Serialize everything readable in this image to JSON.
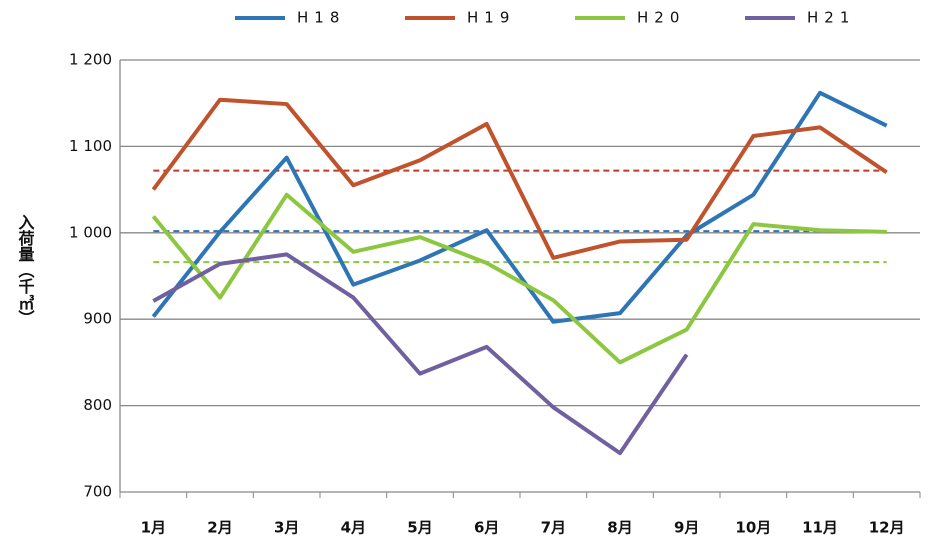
{
  "chart_data": {
    "type": "line",
    "y_label": "入荷量（千㎥）",
    "categories": [
      "1月",
      "2月",
      "3月",
      "4月",
      "5月",
      "6月",
      "7月",
      "8月",
      "9月",
      "10月",
      "11月",
      "12月"
    ],
    "series": [
      {
        "name": "H18",
        "color": "#2e75b6",
        "values": [
          903,
          1001,
          1087,
          940,
          968,
          1003,
          897,
          907,
          997,
          1044,
          1162,
          1124
        ]
      },
      {
        "name": "H19",
        "color": "#c0522c",
        "values": [
          1050,
          1154,
          1149,
          1055,
          1084,
          1126,
          971,
          990,
          992,
          1112,
          1122,
          1070
        ]
      },
      {
        "name": "H20",
        "color": "#8dc63f",
        "values": [
          1019,
          925,
          1044,
          978,
          995,
          965,
          922,
          850,
          888,
          1010,
          1003,
          1001
        ]
      },
      {
        "name": "H21",
        "color": "#7060a0",
        "values": [
          921,
          964,
          975,
          925,
          837,
          868,
          798,
          745,
          859,
          null,
          null,
          null
        ]
      }
    ],
    "average_lines": [
      {
        "color": "#c0392b",
        "value": 1072
      },
      {
        "color": "#2e75b6",
        "value": 1002
      },
      {
        "color": "#8dc63f",
        "value": 966
      }
    ],
    "ylim": [
      700,
      1200
    ],
    "yticks": [
      700,
      800,
      900,
      {
        "value": 1000,
        "label": "1 000"
      },
      {
        "value": 1100,
        "label": "1 100"
      },
      {
        "value": 1200,
        "label": "1 200"
      }
    ],
    "grid": true,
    "legend": "top"
  }
}
